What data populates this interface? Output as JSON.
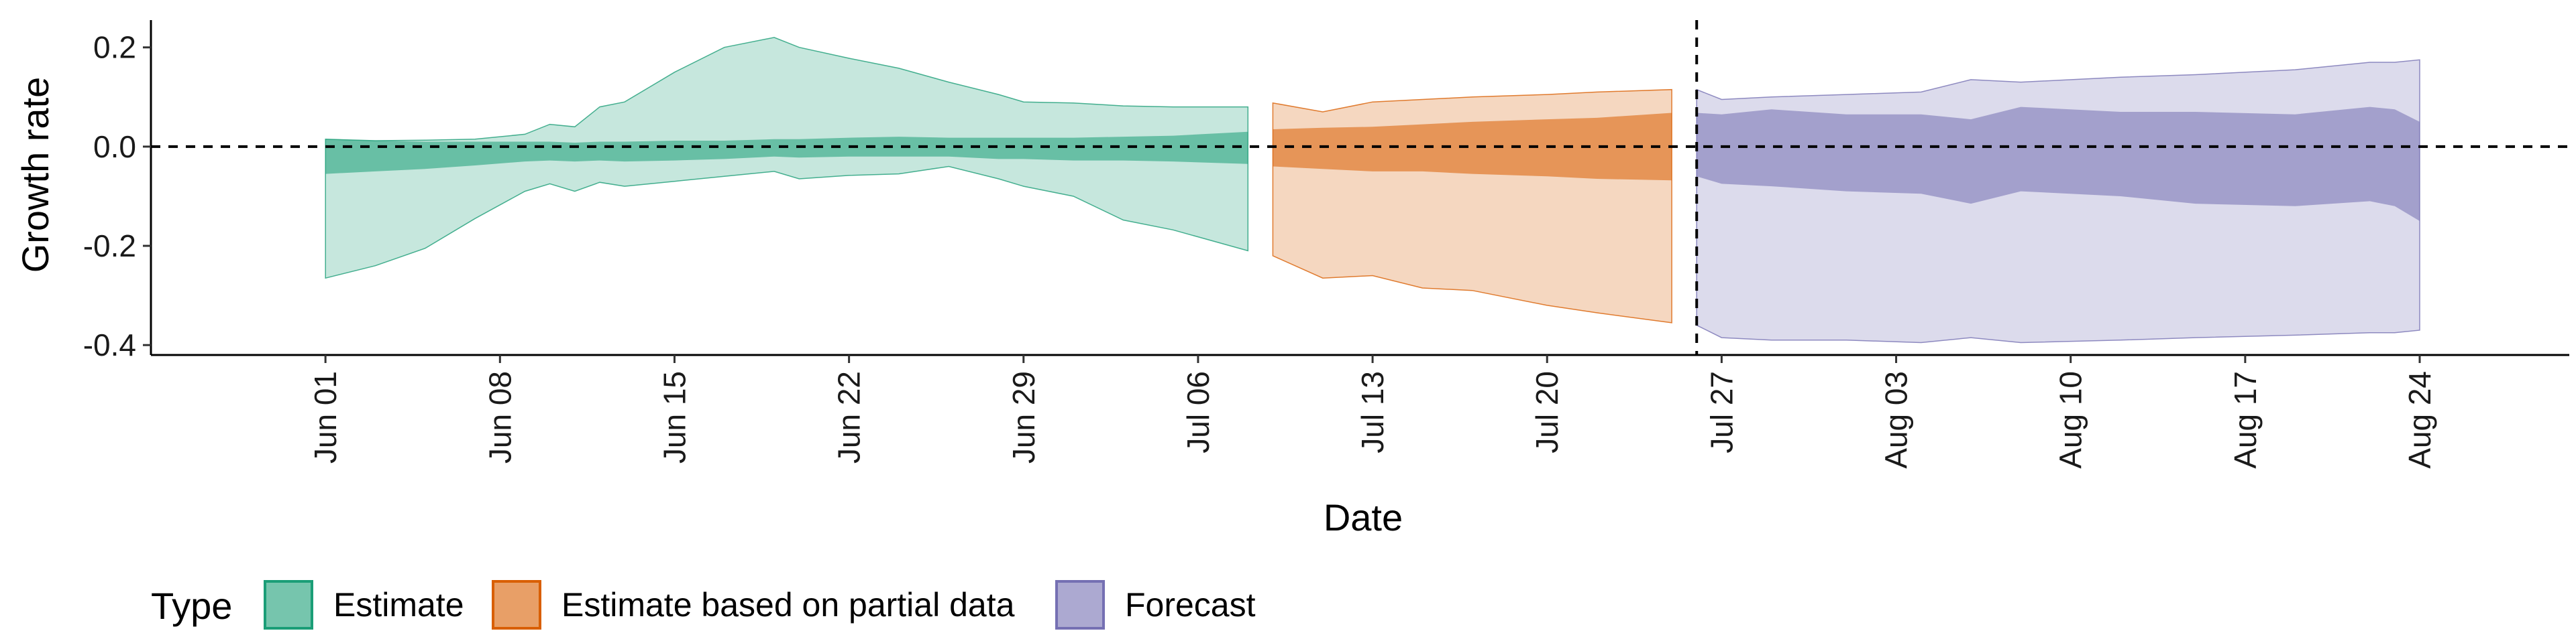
{
  "chart_data": {
    "type": "area",
    "xlabel": "Date",
    "ylabel": "Growth rate",
    "ylim": [
      -0.42,
      0.255
    ],
    "y_ticks": [
      -0.4,
      -0.2,
      0.0,
      0.2
    ],
    "y_tick_labels": [
      "-0.4",
      "-0.2",
      "0.0",
      "0.2"
    ],
    "xlim": [
      "2020-05-25",
      "2020-08-30"
    ],
    "x_ticks": [
      "2020-06-01",
      "2020-06-08",
      "2020-06-15",
      "2020-06-22",
      "2020-06-29",
      "2020-07-06",
      "2020-07-13",
      "2020-07-20",
      "2020-07-27",
      "2020-08-03",
      "2020-08-10",
      "2020-08-17",
      "2020-08-24"
    ],
    "x_tick_labels": [
      "Jun 01",
      "Jun 08",
      "Jun 15",
      "Jun 22",
      "Jun 29",
      "Jul 06",
      "Jul 13",
      "Jul 20",
      "Jul 27",
      "Aug 03",
      "Aug 10",
      "Aug 17",
      "Aug 24"
    ],
    "hline_y": 0,
    "vline_x": "2020-07-26",
    "grid": false,
    "legend_position": "bottom-left",
    "legend_title": "Type",
    "series": [
      {
        "name": "Estimate",
        "color": "#1b9e77",
        "points": [
          {
            "date": "2020-06-01",
            "lo90": -0.265,
            "lo50": -0.055,
            "hi50": 0.015,
            "hi90": 0.015
          },
          {
            "date": "2020-06-03",
            "lo90": -0.24,
            "lo50": -0.05,
            "hi50": 0.012,
            "hi90": 0.012
          },
          {
            "date": "2020-06-05",
            "lo90": -0.205,
            "lo50": -0.045,
            "hi50": 0.01,
            "hi90": 0.013
          },
          {
            "date": "2020-06-07",
            "lo90": -0.145,
            "lo50": -0.038,
            "hi50": 0.01,
            "hi90": 0.015
          },
          {
            "date": "2020-06-09",
            "lo90": -0.09,
            "lo50": -0.03,
            "hi50": 0.01,
            "hi90": 0.025
          },
          {
            "date": "2020-06-10",
            "lo90": -0.075,
            "lo50": -0.028,
            "hi50": 0.01,
            "hi90": 0.045
          },
          {
            "date": "2020-06-11",
            "lo90": -0.09,
            "lo50": -0.03,
            "hi50": 0.008,
            "hi90": 0.04
          },
          {
            "date": "2020-06-12",
            "lo90": -0.072,
            "lo50": -0.028,
            "hi50": 0.01,
            "hi90": 0.08
          },
          {
            "date": "2020-06-13",
            "lo90": -0.08,
            "lo50": -0.03,
            "hi50": 0.01,
            "hi90": 0.09
          },
          {
            "date": "2020-06-15",
            "lo90": -0.07,
            "lo50": -0.028,
            "hi50": 0.012,
            "hi90": 0.15
          },
          {
            "date": "2020-06-17",
            "lo90": -0.06,
            "lo50": -0.025,
            "hi50": 0.012,
            "hi90": 0.2
          },
          {
            "date": "2020-06-19",
            "lo90": -0.05,
            "lo50": -0.02,
            "hi50": 0.015,
            "hi90": 0.22
          },
          {
            "date": "2020-06-20",
            "lo90": -0.065,
            "lo50": -0.022,
            "hi50": 0.015,
            "hi90": 0.2
          },
          {
            "date": "2020-06-22",
            "lo90": -0.058,
            "lo50": -0.02,
            "hi50": 0.018,
            "hi90": 0.178
          },
          {
            "date": "2020-06-24",
            "lo90": -0.055,
            "lo50": -0.02,
            "hi50": 0.02,
            "hi90": 0.158
          },
          {
            "date": "2020-06-26",
            "lo90": -0.04,
            "lo50": -0.02,
            "hi50": 0.018,
            "hi90": 0.13
          },
          {
            "date": "2020-06-28",
            "lo90": -0.065,
            "lo50": -0.025,
            "hi50": 0.018,
            "hi90": 0.105
          },
          {
            "date": "2020-06-29",
            "lo90": -0.08,
            "lo50": -0.025,
            "hi50": 0.018,
            "hi90": 0.09
          },
          {
            "date": "2020-07-01",
            "lo90": -0.1,
            "lo50": -0.028,
            "hi50": 0.018,
            "hi90": 0.088
          },
          {
            "date": "2020-07-03",
            "lo90": -0.148,
            "lo50": -0.028,
            "hi50": 0.02,
            "hi90": 0.082
          },
          {
            "date": "2020-07-05",
            "lo90": -0.168,
            "lo50": -0.03,
            "hi50": 0.022,
            "hi90": 0.08
          },
          {
            "date": "2020-07-08",
            "lo90": -0.21,
            "lo50": -0.035,
            "hi50": 0.03,
            "hi90": 0.08
          }
        ]
      },
      {
        "name": "Estimate based on partial data",
        "color": "#d95f02",
        "points": [
          {
            "date": "2020-07-09",
            "lo90": -0.22,
            "lo50": -0.04,
            "hi50": 0.035,
            "hi90": 0.088
          },
          {
            "date": "2020-07-11",
            "lo90": -0.265,
            "lo50": -0.045,
            "hi50": 0.038,
            "hi90": 0.07
          },
          {
            "date": "2020-07-13",
            "lo90": -0.26,
            "lo50": -0.05,
            "hi50": 0.04,
            "hi90": 0.09
          },
          {
            "date": "2020-07-15",
            "lo90": -0.285,
            "lo50": -0.05,
            "hi50": 0.045,
            "hi90": 0.095
          },
          {
            "date": "2020-07-17",
            "lo90": -0.29,
            "lo50": -0.055,
            "hi50": 0.05,
            "hi90": 0.1
          },
          {
            "date": "2020-07-20",
            "lo90": -0.32,
            "lo50": -0.06,
            "hi50": 0.055,
            "hi90": 0.105
          },
          {
            "date": "2020-07-22",
            "lo90": -0.335,
            "lo50": -0.065,
            "hi50": 0.058,
            "hi90": 0.11
          },
          {
            "date": "2020-07-25",
            "lo90": -0.355,
            "lo50": -0.068,
            "hi50": 0.068,
            "hi90": 0.115
          }
        ]
      },
      {
        "name": "Forecast",
        "color": "#7570b3",
        "points": [
          {
            "date": "2020-07-26",
            "lo90": -0.36,
            "lo50": -0.06,
            "hi50": 0.068,
            "hi90": 0.115
          },
          {
            "date": "2020-07-27",
            "lo90": -0.385,
            "lo50": -0.075,
            "hi50": 0.065,
            "hi90": 0.095
          },
          {
            "date": "2020-07-29",
            "lo90": -0.39,
            "lo50": -0.08,
            "hi50": 0.075,
            "hi90": 0.1
          },
          {
            "date": "2020-08-01",
            "lo90": -0.39,
            "lo50": -0.09,
            "hi50": 0.065,
            "hi90": 0.105
          },
          {
            "date": "2020-08-04",
            "lo90": -0.395,
            "lo50": -0.095,
            "hi50": 0.065,
            "hi90": 0.11
          },
          {
            "date": "2020-08-06",
            "lo90": -0.385,
            "lo50": -0.115,
            "hi50": 0.055,
            "hi90": 0.135
          },
          {
            "date": "2020-08-08",
            "lo90": -0.395,
            "lo50": -0.09,
            "hi50": 0.08,
            "hi90": 0.13
          },
          {
            "date": "2020-08-12",
            "lo90": -0.39,
            "lo50": -0.1,
            "hi50": 0.07,
            "hi90": 0.14
          },
          {
            "date": "2020-08-15",
            "lo90": -0.385,
            "lo50": -0.115,
            "hi50": 0.07,
            "hi90": 0.145
          },
          {
            "date": "2020-08-19",
            "lo90": -0.38,
            "lo50": -0.12,
            "hi50": 0.065,
            "hi90": 0.155
          },
          {
            "date": "2020-08-22",
            "lo90": -0.375,
            "lo50": -0.11,
            "hi50": 0.08,
            "hi90": 0.17
          },
          {
            "date": "2020-08-23",
            "lo90": -0.375,
            "lo50": -0.12,
            "hi50": 0.075,
            "hi90": 0.17
          },
          {
            "date": "2020-08-24",
            "lo90": -0.37,
            "lo50": -0.15,
            "hi50": 0.05,
            "hi90": 0.175
          }
        ]
      }
    ]
  }
}
